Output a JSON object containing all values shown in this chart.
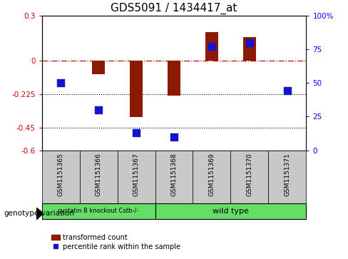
{
  "title": "GDS5091 / 1434417_at",
  "samples": [
    "GSM1151365",
    "GSM1151366",
    "GSM1151367",
    "GSM1151368",
    "GSM1151369",
    "GSM1151370",
    "GSM1151371"
  ],
  "transformed_count": [
    0.0,
    -0.09,
    -0.38,
    -0.235,
    0.19,
    0.155,
    0.0
  ],
  "percentile_rank_pct": [
    50,
    30,
    13,
    10,
    77,
    80,
    44
  ],
  "ylim_left": [
    -0.6,
    0.3
  ],
  "ylim_right": [
    0,
    100
  ],
  "yticks_left": [
    -0.6,
    -0.45,
    -0.225,
    0.0,
    0.3
  ],
  "ytick_labels_left": [
    "-0.6",
    "-0.45",
    "-0.225",
    "0",
    "0.3"
  ],
  "yticks_right": [
    0,
    25,
    50,
    75,
    100
  ],
  "ytick_labels_right": [
    "0",
    "25",
    "50",
    "75",
    "100%"
  ],
  "hline_y": 0.0,
  "dotted_lines": [
    -0.225,
    -0.45
  ],
  "bar_color": "#8B1A00",
  "dot_color": "#1414CC",
  "bar_width": 0.35,
  "dot_size": 45,
  "title_fontsize": 11,
  "legend_label_bar": "transformed count",
  "legend_label_dot": "percentile rank within the sample",
  "genotype_label": "genotype/variation",
  "group1_label": "cystatin B knockout Cstb-/-",
  "group2_label": "wild type",
  "group1_count": 3,
  "group_row_color": "#66DD66",
  "sample_box_color": "#C8C8C8"
}
